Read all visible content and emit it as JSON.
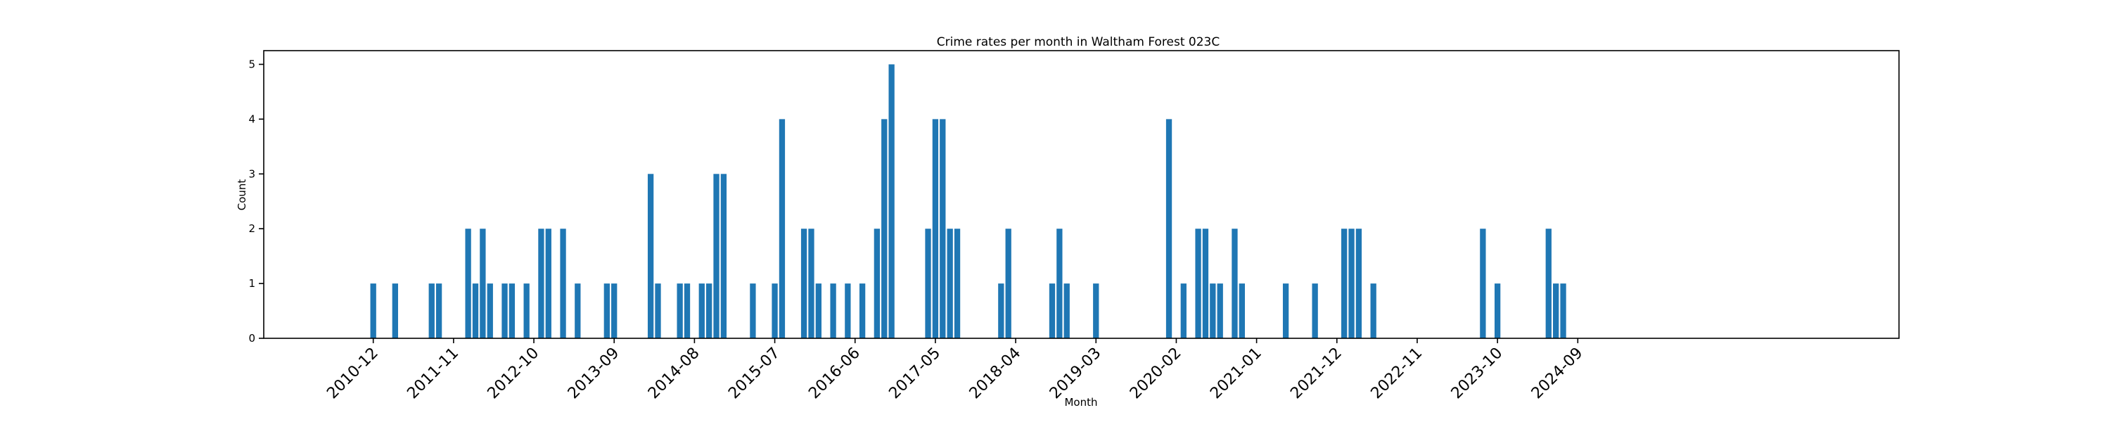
{
  "chart_data": {
    "type": "bar",
    "title": "Crime rates per month in Waltham Forest 023C",
    "xlabel": "Month",
    "ylabel": "Count",
    "ylim": [
      0,
      5.25
    ],
    "yticks": [
      0,
      1,
      2,
      3,
      4,
      5
    ],
    "xlim": [
      "2009-09",
      "2028-05"
    ],
    "xticks": [
      "2010-12",
      "2011-11",
      "2012-10",
      "2013-09",
      "2014-08",
      "2015-07",
      "2016-06",
      "2017-05",
      "2018-04",
      "2019-03",
      "2020-02",
      "2021-01",
      "2021-12",
      "2022-11",
      "2023-10",
      "2024-09"
    ],
    "grid": false,
    "bar_color": "#1f77b4",
    "x": [
      "2010-12",
      "2011-03",
      "2011-08",
      "2011-09",
      "2012-01",
      "2012-02",
      "2012-03",
      "2012-04",
      "2012-06",
      "2012-07",
      "2012-09",
      "2012-11",
      "2012-12",
      "2013-02",
      "2013-04",
      "2013-08",
      "2013-09",
      "2014-02",
      "2014-03",
      "2014-06",
      "2014-07",
      "2014-09",
      "2014-10",
      "2014-11",
      "2014-12",
      "2015-04",
      "2015-07",
      "2015-08",
      "2015-11",
      "2015-12",
      "2016-01",
      "2016-03",
      "2016-05",
      "2016-07",
      "2016-09",
      "2016-10",
      "2016-11",
      "2017-04",
      "2017-05",
      "2017-06",
      "2017-07",
      "2017-08",
      "2018-02",
      "2018-03",
      "2018-09",
      "2018-10",
      "2018-11",
      "2019-03",
      "2020-01",
      "2020-03",
      "2020-05",
      "2020-06",
      "2020-07",
      "2020-08",
      "2020-10",
      "2020-11",
      "2021-05",
      "2021-09",
      "2022-01",
      "2022-02",
      "2022-03",
      "2022-05",
      "2023-08",
      "2023-10",
      "2024-05",
      "2024-06",
      "2024-07"
    ],
    "values": [
      1,
      1,
      1,
      1,
      2,
      1,
      2,
      1,
      1,
      1,
      1,
      2,
      2,
      2,
      1,
      1,
      1,
      3,
      1,
      1,
      1,
      1,
      1,
      3,
      3,
      1,
      1,
      4,
      2,
      2,
      1,
      1,
      1,
      1,
      2,
      4,
      5,
      2,
      4,
      4,
      2,
      2,
      1,
      2,
      1,
      2,
      1,
      1,
      4,
      1,
      2,
      2,
      1,
      1,
      2,
      1,
      1,
      1,
      2,
      2,
      2,
      1,
      2,
      1,
      2,
      1,
      1
    ]
  }
}
